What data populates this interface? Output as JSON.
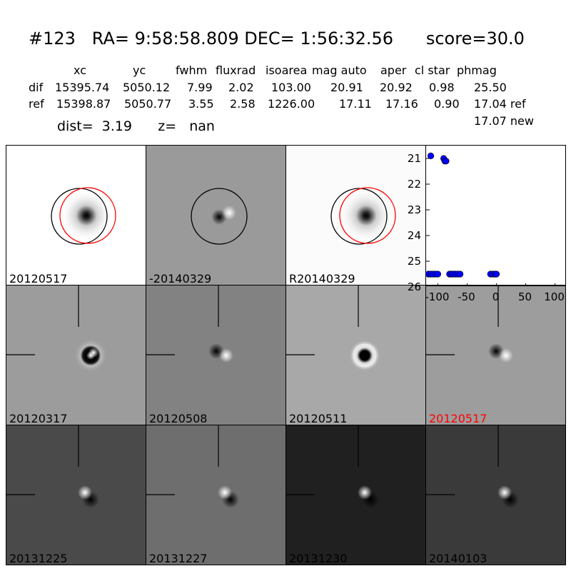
{
  "header": {
    "title": "#123   RA= 9:58:58.809 DEC= 1:56:32.56      score=30.0",
    "columns": [
      "xc",
      "yc",
      "fwhm",
      "fluxrad",
      "isoarea",
      "mag auto",
      "aper",
      "cl star",
      "phmag"
    ],
    "rows": [
      {
        "label": "dif",
        "values": [
          "15395.74",
          "5050.12",
          "7.99",
          "2.02",
          "103.00",
          "20.91",
          "20.92",
          "0.98",
          "25.50"
        ]
      },
      {
        "label": "ref",
        "values": [
          "15398.87",
          "5050.77",
          "3.55",
          "2.58",
          "1226.00",
          "17.11",
          "17.16",
          "0.90",
          "17.04 ref"
        ]
      }
    ],
    "extra_new": "17.07 new",
    "dist_text": "dist=  3.19      z=   nan"
  },
  "panels": [
    {
      "label": "20120517",
      "red": false,
      "bg": "#ffffff",
      "kind": "ref",
      "circles": true
    },
    {
      "label": "-20140329",
      "red": false,
      "bg": "#9a9a9a",
      "kind": "diff",
      "circles": "black"
    },
    {
      "label": "R20140329",
      "red": false,
      "bg": "#fbfbfb",
      "kind": "ref",
      "circles": true
    },
    {
      "label": "20120317",
      "red": false,
      "bg": "#9c9c9c",
      "kind": "ring"
    },
    {
      "label": "20120508",
      "red": false,
      "bg": "#828282",
      "kind": "dipole"
    },
    {
      "label": "20120511",
      "red": false,
      "bg": "#a8a8a8",
      "kind": "ring2"
    },
    {
      "label": "20120517",
      "red": true,
      "bg": "#9d9d9d",
      "kind": "dipole"
    },
    {
      "label": "20131225",
      "red": false,
      "bg": "#4a4a4a",
      "kind": "bright"
    },
    {
      "label": "20131227",
      "red": false,
      "bg": "#6e6e6e",
      "kind": "bright"
    },
    {
      "label": "20131230",
      "red": false,
      "bg": "#202020",
      "kind": "bright"
    },
    {
      "label": "20140103",
      "red": false,
      "bg": "#3a3a3a",
      "kind": "bright"
    }
  ],
  "chart_data": {
    "type": "scatter",
    "x": [
      -116,
      -112,
      -108,
      -104,
      -100,
      -112,
      -90,
      -88,
      -86,
      -80,
      -77,
      -74,
      -70,
      -66,
      -62,
      -10,
      -6,
      -2,
      0
    ],
    "y": [
      25.5,
      25.5,
      25.5,
      25.5,
      25.5,
      20.9,
      21.0,
      21.1,
      21.1,
      25.5,
      25.5,
      25.5,
      25.5,
      25.5,
      25.5,
      25.5,
      25.5,
      25.5,
      25.5
    ],
    "xlim": [
      -120,
      120
    ],
    "ylim": [
      26,
      20.5
    ],
    "xticks": [
      "-100",
      "-50",
      "0",
      "50",
      "100"
    ],
    "yticks": [
      "21",
      "22",
      "23",
      "24",
      "25",
      "26"
    ],
    "marker_color": "#0000ff"
  }
}
